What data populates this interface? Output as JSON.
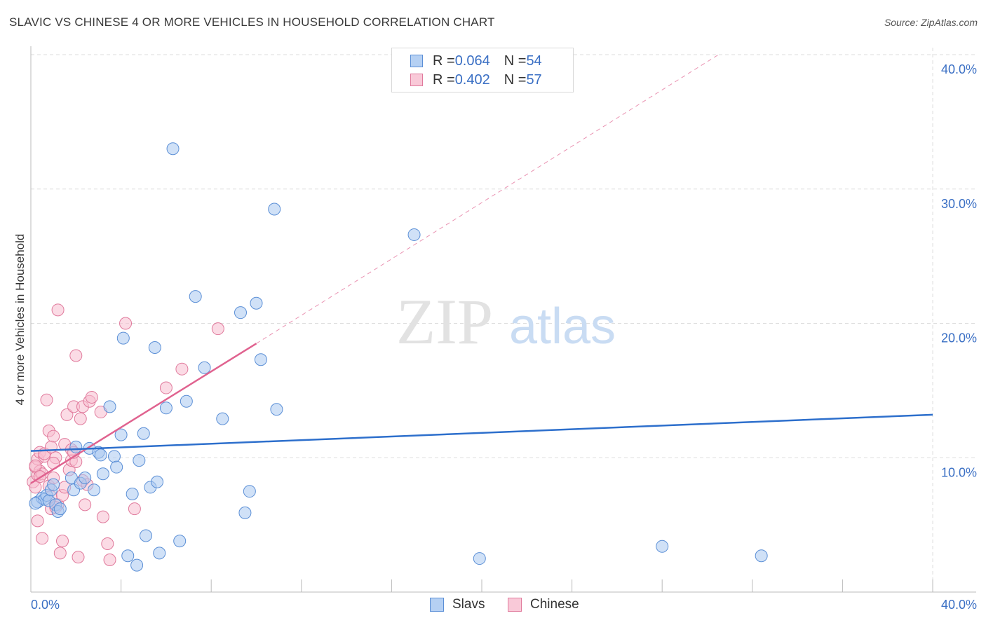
{
  "title": "SLAVIC VS CHINESE 4 OR MORE VEHICLES IN HOUSEHOLD CORRELATION CHART",
  "source": "Source: ZipAtlas.com",
  "watermark": {
    "zip": "ZIP",
    "atlas": "atlas"
  },
  "legend": {
    "rows": [
      {
        "r_label": "R = ",
        "r_value": "0.064",
        "n_label": "N = ",
        "n_value": "54"
      },
      {
        "r_label": "R = ",
        "r_value": "0.402",
        "n_label": "N = ",
        "n_value": "57"
      }
    ]
  },
  "bottom_legend": {
    "slavs": "Slavs",
    "chinese": "Chinese"
  },
  "colors": {
    "slavs_fill": "#a9c8f0",
    "slavs_stroke": "#5b8fd6",
    "slavs_line": "#2d6fcc",
    "chinese_fill": "#f7bdd0",
    "chinese_stroke": "#e07a9c",
    "chinese_line": "#e0628f",
    "axis_label": "#3a6fc4",
    "grid": "#dddddd"
  },
  "chart_data": {
    "type": "scatter",
    "title": "SLAVIC VS CHINESE 4 OR MORE VEHICLES IN HOUSEHOLD CORRELATION CHART",
    "xlabel": "",
    "ylabel": "4 or more Vehicles in Household",
    "xlim": [
      0,
      40
    ],
    "ylim": [
      0,
      40
    ],
    "x_tick_labels": [
      "0.0%",
      "40.0%"
    ],
    "y_tick_labels": [
      "10.0%",
      "20.0%",
      "30.0%",
      "40.0%"
    ],
    "y_ticks": [
      10,
      20,
      30,
      40
    ],
    "grid": true,
    "series": [
      {
        "name": "Slavs",
        "r": 0.064,
        "n": 54,
        "trend": {
          "x": [
            0,
            40
          ],
          "y": [
            10.5,
            13.2
          ]
        },
        "points": [
          [
            0.3,
            6.7
          ],
          [
            0.5,
            7.0
          ],
          [
            0.6,
            6.9
          ],
          [
            0.7,
            7.2
          ],
          [
            0.8,
            6.8
          ],
          [
            0.9,
            7.6
          ],
          [
            1.0,
            8.0
          ],
          [
            1.1,
            6.5
          ],
          [
            1.2,
            6.0
          ],
          [
            1.3,
            6.2
          ],
          [
            1.8,
            8.5
          ],
          [
            1.9,
            7.6
          ],
          [
            2.0,
            10.8
          ],
          [
            2.2,
            8.1
          ],
          [
            2.4,
            8.5
          ],
          [
            2.6,
            10.7
          ],
          [
            2.8,
            7.6
          ],
          [
            3.0,
            10.4
          ],
          [
            3.1,
            10.2
          ],
          [
            3.2,
            8.8
          ],
          [
            3.5,
            13.8
          ],
          [
            3.7,
            10.1
          ],
          [
            3.8,
            9.3
          ],
          [
            4.0,
            11.7
          ],
          [
            4.1,
            18.9
          ],
          [
            4.3,
            2.7
          ],
          [
            4.5,
            7.3
          ],
          [
            4.7,
            2.0
          ],
          [
            4.8,
            9.8
          ],
          [
            5.0,
            11.8
          ],
          [
            5.1,
            4.2
          ],
          [
            5.3,
            7.8
          ],
          [
            5.5,
            18.2
          ],
          [
            5.6,
            8.2
          ],
          [
            5.7,
            2.9
          ],
          [
            6.0,
            13.7
          ],
          [
            6.3,
            33.0
          ],
          [
            6.6,
            3.8
          ],
          [
            6.9,
            14.2
          ],
          [
            7.3,
            22.0
          ],
          [
            7.7,
            16.7
          ],
          [
            8.5,
            12.9
          ],
          [
            9.3,
            20.8
          ],
          [
            9.5,
            5.9
          ],
          [
            9.7,
            7.5
          ],
          [
            10.0,
            21.5
          ],
          [
            10.2,
            17.3
          ],
          [
            10.8,
            28.5
          ],
          [
            10.9,
            13.6
          ],
          [
            17.0,
            26.6
          ],
          [
            19.9,
            2.5
          ],
          [
            28.0,
            3.4
          ],
          [
            32.4,
            2.7
          ],
          [
            0.2,
            6.6
          ]
        ]
      },
      {
        "name": "Chinese",
        "r": 0.402,
        "n": 57,
        "trend": {
          "x": [
            0,
            10
          ],
          "y": [
            8.1,
            18.5
          ]
        },
        "trend_extension": {
          "x": [
            10,
            30.5
          ],
          "y": [
            18.5,
            40.0
          ]
        },
        "points": [
          [
            0.1,
            8.2
          ],
          [
            0.2,
            7.8
          ],
          [
            0.2,
            9.3
          ],
          [
            0.3,
            8.7
          ],
          [
            0.3,
            5.3
          ],
          [
            0.3,
            9.9
          ],
          [
            0.4,
            9.0
          ],
          [
            0.4,
            10.4
          ],
          [
            0.5,
            8.8
          ],
          [
            0.5,
            4.0
          ],
          [
            0.6,
            10.1
          ],
          [
            0.7,
            14.3
          ],
          [
            0.8,
            7.9
          ],
          [
            0.8,
            12.0
          ],
          [
            0.9,
            7.1
          ],
          [
            0.9,
            6.2
          ],
          [
            1.0,
            11.6
          ],
          [
            1.0,
            8.5
          ],
          [
            1.1,
            10.0
          ],
          [
            1.2,
            21.0
          ],
          [
            1.2,
            6.5
          ],
          [
            1.3,
            2.9
          ],
          [
            1.4,
            7.2
          ],
          [
            1.4,
            3.8
          ],
          [
            1.5,
            11.0
          ],
          [
            1.6,
            13.2
          ],
          [
            1.7,
            9.1
          ],
          [
            1.8,
            9.8
          ],
          [
            1.8,
            10.6
          ],
          [
            1.9,
            13.8
          ],
          [
            2.0,
            17.6
          ],
          [
            2.0,
            9.7
          ],
          [
            2.1,
            2.6
          ],
          [
            2.2,
            12.9
          ],
          [
            2.3,
            13.8
          ],
          [
            2.3,
            8.3
          ],
          [
            2.4,
            6.5
          ],
          [
            2.6,
            14.2
          ],
          [
            2.7,
            14.5
          ],
          [
            3.1,
            13.4
          ],
          [
            3.2,
            5.6
          ],
          [
            3.4,
            3.6
          ],
          [
            3.5,
            2.4
          ],
          [
            4.2,
            20.0
          ],
          [
            4.6,
            6.2
          ],
          [
            6.0,
            15.2
          ],
          [
            6.7,
            16.6
          ],
          [
            8.3,
            19.6
          ],
          [
            0.2,
            9.4
          ],
          [
            0.6,
            10.3
          ],
          [
            0.9,
            10.8
          ],
          [
            1.1,
            6.3
          ],
          [
            1.5,
            7.8
          ],
          [
            1.9,
            10.4
          ],
          [
            2.5,
            8.0
          ],
          [
            0.4,
            8.6
          ],
          [
            1.0,
            9.6
          ]
        ]
      }
    ]
  }
}
